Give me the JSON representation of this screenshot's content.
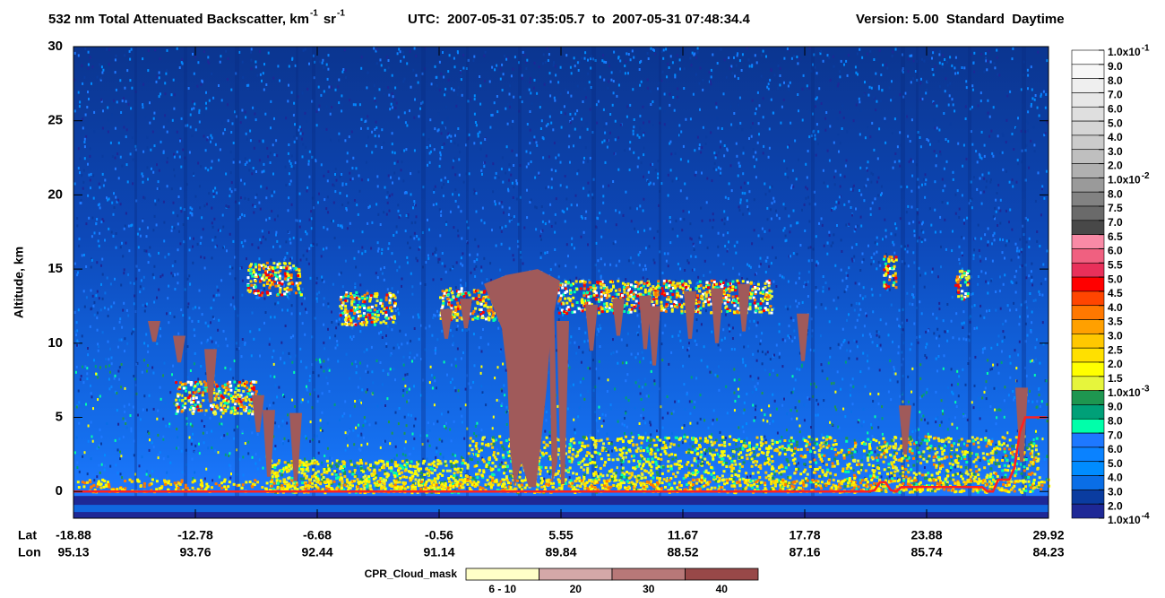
{
  "chart_data": {
    "type": "heatmap",
    "title": {
      "main": "532 nm Total Attenuated Backscatter, km",
      "sup1": "-1",
      "unit2": "sr",
      "sup2": "-1"
    },
    "time_range": "UTC:  2007-05-31 07:35:05.7  to  2007-05-31 07:48:34.4",
    "version": "Version: 5.00  Standard  Daytime",
    "y_label": "Altitude, km",
    "ylim": [
      -1.8,
      30
    ],
    "yticks": [
      0,
      5,
      10,
      15,
      20,
      25,
      30
    ],
    "x_rows": [
      {
        "name": "Lat",
        "values": [
          -18.88,
          -12.78,
          -6.68,
          -0.56,
          5.55,
          11.67,
          17.78,
          23.88,
          29.92
        ]
      },
      {
        "name": "Lon",
        "values": [
          95.13,
          93.76,
          92.44,
          91.14,
          89.84,
          88.52,
          87.16,
          85.74,
          84.23
        ]
      }
    ],
    "colorbar": {
      "labels": [
        {
          "text": "1.0x10",
          "sup": "-1"
        },
        "9.0",
        "8.0",
        "7.0",
        "6.0",
        "5.0",
        "4.0",
        "3.0",
        "2.0",
        {
          "text": "1.0x10",
          "sup": "-2"
        },
        "8.0",
        "7.5",
        "7.0",
        "6.5",
        "6.0",
        "5.5",
        "5.0",
        "4.5",
        "4.0",
        "3.5",
        "3.0",
        "2.5",
        "2.0",
        "1.5",
        {
          "text": "1.0x10",
          "sup": "-3"
        },
        "9.0",
        "8.0",
        "7.0",
        "6.0",
        "5.0",
        "4.0",
        "3.0",
        "2.0",
        {
          "text": "1.0x10",
          "sup": "-4"
        }
      ],
      "colors": [
        "#ffffff",
        "#f7f7f7",
        "#efefef",
        "#e7e7e7",
        "#dfdfdf",
        "#d5d5d5",
        "#cbcbcb",
        "#bfbfbf",
        "#b0b0b0",
        "#9a9a9a",
        "#828282",
        "#6a6a6a",
        "#484848",
        "#f98aa6",
        "#f06080",
        "#e8305a",
        "#ff0000",
        "#ff4500",
        "#ff7800",
        "#ffa000",
        "#ffc800",
        "#ffe000",
        "#ffff00",
        "#e6f53c",
        "#1e9650",
        "#00a078",
        "#00ffaa",
        "#1e78ff",
        "#0a82ff",
        "#008cff",
        "#0a6ee6",
        "#0a3ca0",
        "#1e2896"
      ]
    },
    "legend": {
      "title": "CPR_Cloud_mask",
      "labels": [
        "6 - 10",
        "20",
        "30",
        "40"
      ],
      "colors": [
        "#ffffc8",
        "#d4a8a8",
        "#b87878",
        "#984848"
      ]
    }
  }
}
